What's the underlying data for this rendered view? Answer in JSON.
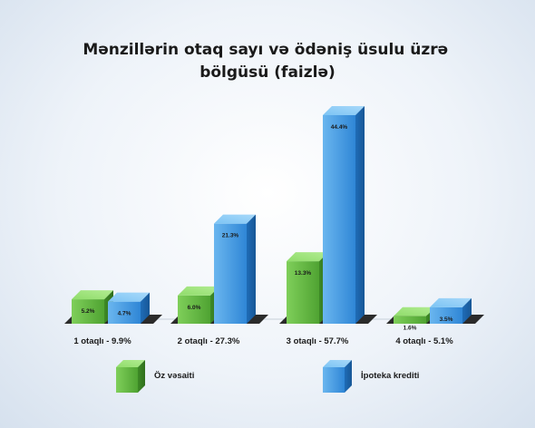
{
  "chart_data": {
    "type": "bar",
    "title_lines": [
      "Mənzillərin otaq sayı və ödəniş üsulu üzrə",
      "bölgüsü (faizlə)"
    ],
    "categories": [
      "1 otaqlı - 9.9%",
      "2 otaqlı - 27.3%",
      "3 otaqlı - 57.7%",
      "4 otaqlı - 5.1%"
    ],
    "series": [
      {
        "name": "Öz vəsaiti",
        "values": [
          5.2,
          6.0,
          13.3,
          1.6
        ],
        "labels": [
          "5.2%",
          "6.0%",
          "13.3%",
          "1.6%"
        ],
        "color": "#6cc04a"
      },
      {
        "name": "İpoteka krediti",
        "values": [
          4.7,
          21.3,
          44.4,
          3.5
        ],
        "labels": [
          "4.7%",
          "21.3%",
          "44.4%",
          "3.5%"
        ],
        "color": "#3d97e0"
      }
    ],
    "ylim": [
      0,
      44.4
    ],
    "grid": false,
    "legend_position": "bottom",
    "style": "3d-columns"
  }
}
